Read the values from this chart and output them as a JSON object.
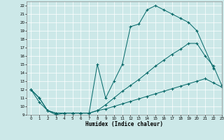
{
  "xlabel": "Humidex (Indice chaleur)",
  "xlim": [
    -0.5,
    23
  ],
  "ylim": [
    9,
    22.5
  ],
  "xticks": [
    0,
    1,
    2,
    3,
    4,
    5,
    6,
    7,
    8,
    9,
    10,
    11,
    12,
    13,
    14,
    15,
    16,
    17,
    18,
    19,
    20,
    21,
    22,
    23
  ],
  "yticks": [
    9,
    10,
    11,
    12,
    13,
    14,
    15,
    16,
    17,
    18,
    19,
    20,
    21,
    22
  ],
  "bg_color": "#cce8e8",
  "grid_color": "#b0d0d0",
  "line_color": "#006666",
  "line1_x": [
    0,
    1,
    2,
    3,
    4,
    5,
    6,
    7,
    8,
    9,
    10,
    11,
    12,
    13,
    14,
    15,
    16,
    17,
    18,
    19,
    20,
    22
  ],
  "line1_y": [
    12,
    10.5,
    9.5,
    9,
    9.2,
    9.2,
    9.2,
    9.2,
    15,
    11,
    13,
    15,
    19.5,
    19.8,
    21.5,
    22,
    21.5,
    21,
    20.5,
    20,
    19,
    14.5
  ],
  "line2_x": [
    0,
    1,
    2,
    3,
    4,
    5,
    6,
    7,
    8,
    9,
    10,
    11,
    12,
    13,
    14,
    15,
    16,
    17,
    18,
    19,
    20,
    21,
    22,
    23
  ],
  "line2_y": [
    12,
    11,
    9.5,
    9.2,
    9.2,
    9.2,
    9.2,
    9.2,
    9.5,
    10.2,
    11,
    11.8,
    12.5,
    13.2,
    14,
    14.8,
    15.5,
    16.2,
    16.8,
    17.5,
    17.5,
    16,
    14.8,
    12.5
  ],
  "line3_x": [
    0,
    1,
    2,
    3,
    4,
    5,
    6,
    7,
    8,
    9,
    10,
    11,
    12,
    13,
    14,
    15,
    16,
    17,
    18,
    19,
    20,
    21,
    22,
    23
  ],
  "line3_y": [
    12,
    11,
    9.5,
    9.2,
    9.2,
    9.2,
    9.2,
    9.2,
    9.5,
    9.7,
    10.0,
    10.3,
    10.6,
    10.9,
    11.2,
    11.5,
    11.8,
    12.1,
    12.4,
    12.7,
    13.0,
    13.3,
    12.8,
    12.3
  ]
}
